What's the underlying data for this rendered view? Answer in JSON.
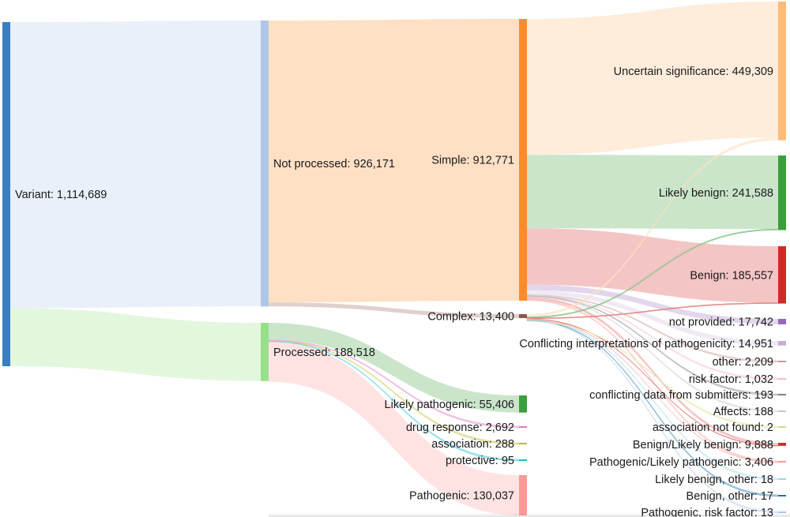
{
  "chart_data": {
    "type": "sankey",
    "nodes": [
      {
        "id": "variant",
        "label": "Variant: 1,114,689",
        "value": 1114689,
        "color": "#3a7ebf"
      },
      {
        "id": "not_processed",
        "label": "Not processed: 926,171",
        "value": 926171,
        "color": "#aec7e8"
      },
      {
        "id": "processed",
        "label": "Processed: 188,518",
        "value": 188518,
        "color": "#98df8a"
      },
      {
        "id": "simple",
        "label": "Simple: 912,771",
        "value": 912771,
        "color": "#ff8b2a"
      },
      {
        "id": "complex",
        "label": "Complex: 13,400",
        "value": 13400,
        "color": "#8c564b"
      },
      {
        "id": "likely_pathogenic",
        "label": "Likely pathogenic: 55,406",
        "value": 55406,
        "color": "#3a9f3a"
      },
      {
        "id": "drug_response",
        "label": "drug response: 2,692",
        "value": 2692,
        "color": "#e377c2"
      },
      {
        "id": "association",
        "label": "association: 288",
        "value": 288,
        "color": "#bcbd22"
      },
      {
        "id": "protective",
        "label": "protective: 95",
        "value": 95,
        "color": "#17becf"
      },
      {
        "id": "pathogenic",
        "label": "Pathogenic: 130,037",
        "value": 130037,
        "color": "#ff9896"
      },
      {
        "id": "uncertain",
        "label": "Uncertain significance: 449,309",
        "value": 449309,
        "color": "#ffbb78"
      },
      {
        "id": "likely_benign",
        "label": "Likely benign: 241,588",
        "value": 241588,
        "color": "#3a9f3a"
      },
      {
        "id": "benign",
        "label": "Benign: 185,557",
        "value": 185557,
        "color": "#d62728"
      },
      {
        "id": "not_provided",
        "label": "not provided: 17,742",
        "value": 17742,
        "color": "#9467bd"
      },
      {
        "id": "conflicting",
        "label": "Conflicting interpretations of pathogenicity: 14,951",
        "value": 14951,
        "color": "#c5b0d5"
      },
      {
        "id": "other",
        "label": "other: 2,209",
        "value": 2209,
        "color": "#c49c94"
      },
      {
        "id": "risk_factor",
        "label": "risk factor: 1,032",
        "value": 1032,
        "color": "#f7b6d2"
      },
      {
        "id": "conflicting_data",
        "label": "conflicting data from submitters: 193",
        "value": 193,
        "color": "#7f7f7f"
      },
      {
        "id": "affects",
        "label": "Affects: 188",
        "value": 188,
        "color": "#c7c7c7"
      },
      {
        "id": "assoc_not_found",
        "label": "association not found: 2",
        "value": 2,
        "color": "#dbdb8d"
      },
      {
        "id": "benign_likely_benign",
        "label": "Benign/Likely benign: 9,888",
        "value": 9888,
        "color": "#d62728"
      },
      {
        "id": "path_likely_path",
        "label": "Pathogenic/Likely pathogenic: 3,406",
        "value": 3406,
        "color": "#ff9896"
      },
      {
        "id": "likely_benign_other",
        "label": "Likely benign, other: 18",
        "value": 18,
        "color": "#9edae5"
      },
      {
        "id": "benign_other",
        "label": "Benign, other: 17",
        "value": 17,
        "color": "#1f77b4"
      },
      {
        "id": "path_risk_factor",
        "label": "Pathogenic, risk factor: 13",
        "value": 13,
        "color": "#aec7e8"
      }
    ],
    "links": [
      {
        "source": "variant",
        "target": "not_processed",
        "value": 926171
      },
      {
        "source": "variant",
        "target": "processed",
        "value": 188518
      },
      {
        "source": "not_processed",
        "target": "simple",
        "value": 912771
      },
      {
        "source": "not_processed",
        "target": "complex",
        "value": 13400
      },
      {
        "source": "processed",
        "target": "likely_pathogenic",
        "value": 55406
      },
      {
        "source": "processed",
        "target": "drug_response",
        "value": 2692
      },
      {
        "source": "processed",
        "target": "association",
        "value": 288
      },
      {
        "source": "processed",
        "target": "protective",
        "value": 95
      },
      {
        "source": "processed",
        "target": "pathogenic",
        "value": 130037
      },
      {
        "source": "simple",
        "target": "uncertain",
        "value": 440000
      },
      {
        "source": "simple",
        "target": "likely_benign",
        "value": 238000
      },
      {
        "source": "simple",
        "target": "benign",
        "value": 183000
      },
      {
        "source": "simple",
        "target": "not_provided",
        "value": 17500
      },
      {
        "source": "simple",
        "target": "conflicting",
        "value": 14800
      },
      {
        "source": "simple",
        "target": "other",
        "value": 2200
      },
      {
        "source": "simple",
        "target": "risk_factor",
        "value": 1000
      },
      {
        "source": "simple",
        "target": "conflicting_data",
        "value": 190
      },
      {
        "source": "simple",
        "target": "affects",
        "value": 185
      },
      {
        "source": "simple",
        "target": "benign_likely_benign",
        "value": 9000
      },
      {
        "source": "simple",
        "target": "path_likely_path",
        "value": 3000
      },
      {
        "source": "complex",
        "target": "uncertain",
        "value": 9300
      },
      {
        "source": "complex",
        "target": "likely_benign",
        "value": 3500
      },
      {
        "source": "complex",
        "target": "benign",
        "value": 2500
      },
      {
        "source": "complex",
        "target": "benign_likely_benign",
        "value": 888
      },
      {
        "source": "complex",
        "target": "path_likely_path",
        "value": 406
      },
      {
        "source": "complex",
        "target": "likely_benign_other",
        "value": 18
      },
      {
        "source": "complex",
        "target": "benign_other",
        "value": 17
      },
      {
        "source": "complex",
        "target": "path_risk_factor",
        "value": 13
      },
      {
        "source": "complex",
        "target": "assoc_not_found",
        "value": 2
      }
    ]
  }
}
